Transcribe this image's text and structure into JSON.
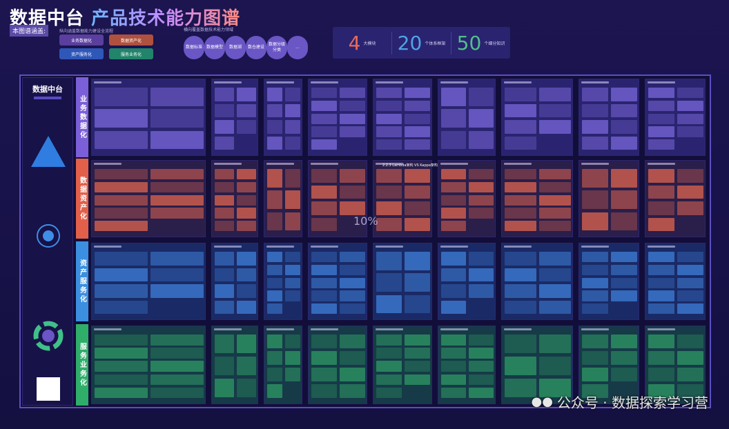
{
  "header": {
    "title_part1": "数据中台",
    "title_part2": "产品技术能力图谱",
    "cover_label": "本图谱涵盖:",
    "vertical_caption": "纵向涵盖数据能力建设全流程",
    "vertical_items": [
      {
        "label": "业务数据化",
        "color": "#5a3f9e"
      },
      {
        "label": "数据资产化",
        "color": "#b0503e"
      },
      {
        "label": "资产服务化",
        "color": "#2f57b8"
      },
      {
        "label": "服务业务化",
        "color": "#22846a"
      }
    ],
    "horizontal_caption": "横向覆盖数据技术能力领域",
    "horizontal_items": [
      "数据标准",
      "数据模型",
      "数据湖",
      "数仓建设",
      "数据分级分类",
      "..."
    ]
  },
  "stats": [
    {
      "value": "4",
      "label": "大模块",
      "color": "#e86a5c"
    },
    {
      "value": "20",
      "label": "个体系框架",
      "color": "#4fa3e6"
    },
    {
      "value": "50",
      "label": "个细分知识",
      "color": "#4fbf8a"
    }
  ],
  "left_column": {
    "brand": "数据中台"
  },
  "bands": [
    {
      "label": "业务数据化",
      "color": "#7b5fd8",
      "panel": "#2a2470",
      "accent": "#7a66d8"
    },
    {
      "label": "数据资产化",
      "color": "#e2604a",
      "panel": "#2a1e4a",
      "accent": "#e0644e"
    },
    {
      "label": "资产服务化",
      "color": "#3c8fe0",
      "panel": "#1a2a66",
      "accent": "#3f7fd8"
    },
    {
      "label": "服务业务化",
      "color": "#2fae6a",
      "panel": "#163a48",
      "accent": "#2f9a64"
    }
  ],
  "highlights": {
    "lambda_title": "2.2.3 Lambda架构 VS Kappa架构",
    "percent": "10%"
  },
  "watermark": "公众号 · 数据探索学习营"
}
